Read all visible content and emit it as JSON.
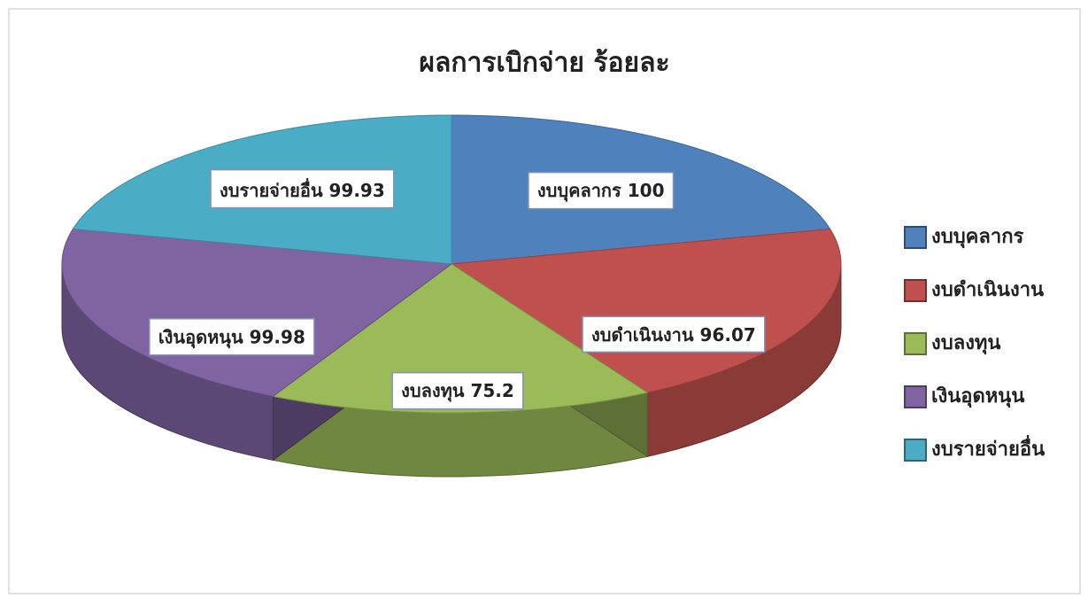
{
  "chart_data": {
    "type": "pie3d",
    "title": "ผลการเบิกจ่าย ร้อยละ",
    "categories": [
      "งบบุคลากร",
      "งบดำเนินงาน",
      "งบลงทุน",
      "เงินอุดหนุน",
      "งบรายจ่ายอื่น"
    ],
    "values": [
      100,
      96.07,
      75.2,
      99.98,
      99.93
    ],
    "colors": [
      "#4f81bd",
      "#c0504d",
      "#9bbb59",
      "#8064a2",
      "#4bacc6"
    ],
    "legend": "right"
  }
}
